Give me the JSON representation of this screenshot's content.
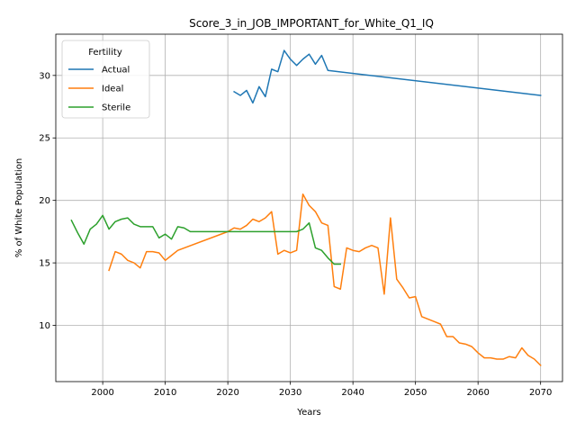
{
  "chart_data": {
    "type": "line",
    "title": "Score_3_in_JOB_IMPORTANT_for_White_Q1_IQ",
    "xlabel": "Years",
    "ylabel": "% of White Population",
    "xlim": [
      1992.5,
      2073.5
    ],
    "ylim": [
      5.5,
      33.3
    ],
    "xticks": [
      2000,
      2010,
      2020,
      2030,
      2040,
      2050,
      2060,
      2070
    ],
    "yticks": [
      10,
      15,
      20,
      25,
      30
    ],
    "grid": true,
    "legend": {
      "title": "Fertility",
      "position": "top-left"
    },
    "series": [
      {
        "name": "Actual",
        "color": "#1f77b4",
        "x": [
          2021,
          2022,
          2023,
          2024,
          2025,
          2026,
          2027,
          2028,
          2029,
          2030,
          2031,
          2032,
          2033,
          2034,
          2035,
          2036,
          2070
        ],
        "y": [
          28.7,
          28.4,
          28.8,
          27.8,
          29.1,
          28.3,
          30.5,
          30.3,
          32.0,
          31.3,
          30.8,
          31.3,
          31.7,
          30.9,
          31.6,
          30.4,
          28.4
        ]
      },
      {
        "name": "Ideal",
        "color": "#ff7f0e",
        "x": [
          2001,
          2002,
          2003,
          2004,
          2005,
          2006,
          2007,
          2008,
          2009,
          2010,
          2011,
          2012,
          2020,
          2021,
          2022,
          2023,
          2024,
          2025,
          2026,
          2027,
          2028,
          2029,
          2030,
          2031,
          2032,
          2033,
          2034,
          2035,
          2036,
          2037,
          2038,
          2039,
          2040,
          2041,
          2042,
          2043,
          2044,
          2045,
          2046,
          2047,
          2048,
          2049,
          2050,
          2051,
          2052,
          2053,
          2054,
          2055,
          2056,
          2057,
          2058,
          2059,
          2060,
          2061,
          2062,
          2063,
          2064,
          2065,
          2066,
          2067,
          2068,
          2069,
          2070
        ],
        "y": [
          14.4,
          15.9,
          15.7,
          15.2,
          15.0,
          14.6,
          15.9,
          15.9,
          15.8,
          15.2,
          15.6,
          16.0,
          17.5,
          17.8,
          17.7,
          18.0,
          18.5,
          18.3,
          18.6,
          19.1,
          15.7,
          16.0,
          15.8,
          16.0,
          20.5,
          19.6,
          19.1,
          18.2,
          18.0,
          13.1,
          12.9,
          16.2,
          16.0,
          15.9,
          16.2,
          16.4,
          16.2,
          12.5,
          18.6,
          13.7,
          13.0,
          12.2,
          12.3,
          10.7,
          10.5,
          10.3,
          10.1,
          9.1,
          9.1,
          8.6,
          8.5,
          8.3,
          7.8,
          7.4,
          7.4,
          7.3,
          7.3,
          7.5,
          7.4,
          8.2,
          7.6,
          7.3,
          6.8
        ]
      },
      {
        "name": "Sterile",
        "color": "#2ca02c",
        "x": [
          1995,
          1996,
          1997,
          1998,
          1999,
          2000,
          2001,
          2002,
          2003,
          2004,
          2005,
          2006,
          2007,
          2008,
          2009,
          2010,
          2011,
          2012,
          2013,
          2014,
          2020,
          2030,
          2031,
          2032,
          2033,
          2034,
          2035,
          2036,
          2037,
          2038
        ],
        "y": [
          18.4,
          17.4,
          16.5,
          17.7,
          18.1,
          18.8,
          17.7,
          18.3,
          18.5,
          18.6,
          18.1,
          17.9,
          17.9,
          17.9,
          17.0,
          17.3,
          16.9,
          17.9,
          17.8,
          17.5,
          17.5,
          17.5,
          17.5,
          17.7,
          18.2,
          16.2,
          16.0,
          15.4,
          14.9,
          14.9
        ]
      }
    ]
  }
}
